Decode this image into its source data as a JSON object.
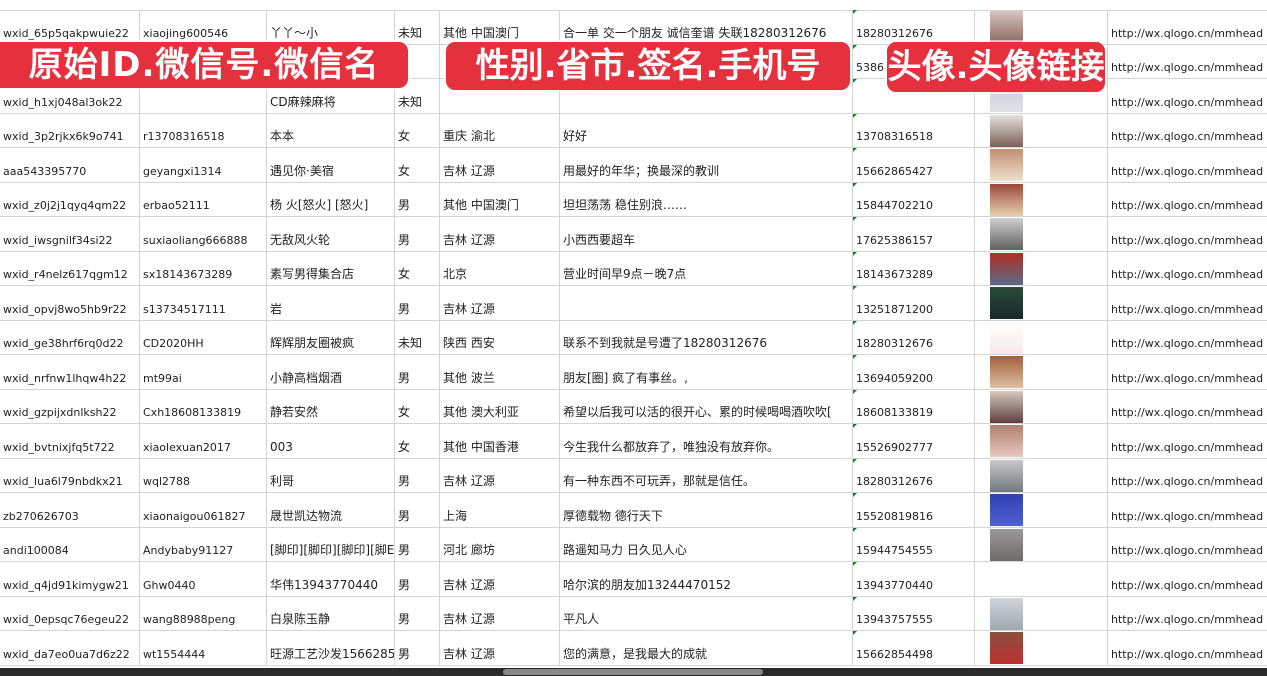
{
  "banners": {
    "left": "原始ID.微信号.微信名",
    "middle": "性别.省市.签名.手机号",
    "right": "头像.头像链接"
  },
  "colors": {
    "banner": "#e5313d",
    "grid": "#d4d4d4",
    "comment_marker": "#1f7a1f"
  },
  "rows": [
    {
      "id": "wxid_65p5qakpwuie22",
      "wechat": "xiaojing600546",
      "name": "丫丫～小",
      "gender": "未知",
      "region": "其他 中国澳门",
      "signature": "合一单 交一个朋友 诚信奎谱 失联18280312676",
      "phone": "18280312676",
      "url": "http://wx.qlogo.cn/mmhead"
    },
    {
      "id": "",
      "wechat": "",
      "name": "",
      "gender": "",
      "region": "",
      "signature": "",
      "phone": "5386",
      "url": "http://wx.qlogo.cn/mmhead"
    },
    {
      "id": "wxid_h1xj048al3ok22",
      "wechat": "",
      "name": "CD麻辣麻将",
      "gender": "未知",
      "region": "",
      "signature": "",
      "phone": "",
      "url": "http://wx.qlogo.cn/mmhead"
    },
    {
      "id": "wxid_3p2rjkx6k9o741",
      "wechat": "r13708316518",
      "name": "本本",
      "gender": "女",
      "region": "重庆 渝北",
      "signature": "好好",
      "phone": "13708316518",
      "url": "http://wx.qlogo.cn/mmhead"
    },
    {
      "id": "aaa543395770",
      "wechat": "geyangxi1314",
      "name": "遇见你·美宿",
      "gender": "女",
      "region": "吉林 辽源",
      "signature": "用最好的年华；换最深的教训",
      "phone": "15662865427",
      "url": "http://wx.qlogo.cn/mmhead"
    },
    {
      "id": "wxid_z0j2j1qyq4qm22",
      "wechat": "erbao52111",
      "name": "杨 火[怒火] [怒火]",
      "gender": "男",
      "region": "其他 中国澳门",
      "signature": "坦坦荡荡 稳住别浪……",
      "phone": "15844702210",
      "url": "http://wx.qlogo.cn/mmhead"
    },
    {
      "id": "wxid_iwsgnilf34si22",
      "wechat": "suxiaoliang666888",
      "name": "无敌风火轮",
      "gender": "男",
      "region": "吉林 辽源",
      "signature": "小西西要超车",
      "phone": "17625386157",
      "url": "http://wx.qlogo.cn/mmhead"
    },
    {
      "id": "wxid_r4nelz617qgm12",
      "wechat": "sx18143673289",
      "name": "素写男得集合店",
      "gender": "女",
      "region": "北京",
      "signature": "营业时间早9点－晚7点",
      "phone": "18143673289",
      "url": "http://wx.qlogo.cn/mmhead"
    },
    {
      "id": "wxid_opvj8wo5hb9r22",
      "wechat": "s13734517111",
      "name": "岩",
      "gender": "男",
      "region": "吉林 辽源",
      "signature": "",
      "phone": "13251871200",
      "url": "http://wx.qlogo.cn/mmhead"
    },
    {
      "id": "wxid_ge38hrf6rq0d22",
      "wechat": "CD2020HH",
      "name": "辉辉朋友圈被疯",
      "gender": "未知",
      "region": "陕西 西安",
      "signature": "联系不到我就是号遭了18280312676",
      "phone": "18280312676",
      "url": "http://wx.qlogo.cn/mmhead"
    },
    {
      "id": "wxid_nrfnw1lhqw4h22",
      "wechat": "mt99ai",
      "name": "小静高档烟酒",
      "gender": "男",
      "region": "其他 波兰",
      "signature": "朋友[圈] 疯了有事丝。,",
      "phone": "13694059200",
      "url": "http://wx.qlogo.cn/mmhead"
    },
    {
      "id": "wxid_gzpijxdnlksh22",
      "wechat": "Cxh18608133819",
      "name": "静若安然",
      "gender": "女",
      "region": "其他 澳大利亚",
      "signature": "希望以后我可以活的很开心、累的时候喝喝酒吹吹[",
      "phone": "18608133819",
      "url": "http://wx.qlogo.cn/mmhead"
    },
    {
      "id": "wxid_bvtnixjfq5t722",
      "wechat": "xiaolexuan2017",
      "name": "003",
      "gender": "女",
      "region": "其他 中国香港",
      "signature": "今生我什么都放弃了，唯独没有放弃你。",
      "phone": "15526902777",
      "url": "http://wx.qlogo.cn/mmhead"
    },
    {
      "id": "wxid_lua6l79nbdkx21",
      "wechat": "wql2788",
      "name": "利哥",
      "gender": "男",
      "region": "吉林 辽源",
      "signature": "有一种东西不可玩弄，那就是信任。",
      "phone": "18280312676",
      "url": "http://wx.qlogo.cn/mmhead"
    },
    {
      "id": "zb270626703",
      "wechat": "xiaonaigou061827",
      "name": "晟世凯达物流",
      "gender": "男",
      "region": "上海",
      "signature": "厚德载物 德行天下",
      "phone": "15520819816",
      "url": "http://wx.qlogo.cn/mmhead"
    },
    {
      "id": "andi100084",
      "wechat": "Andybaby91127",
      "name": "[脚印][脚印][脚印][脚E",
      "gender": "男",
      "region": "河北 廊坊",
      "signature": "路遥知马力 日久见人心",
      "phone": "15944754555",
      "url": "http://wx.qlogo.cn/mmhead"
    },
    {
      "id": "wxid_q4jd91kimygw21",
      "wechat": "Ghw0440",
      "name": "华伟13943770440",
      "gender": "男",
      "region": "吉林 辽源",
      "signature": "哈尔滨的朋友加13244470152",
      "phone": "13943770440",
      "url": "http://wx.qlogo.cn/mmhead"
    },
    {
      "id": "wxid_0epsqc76egeu22",
      "wechat": "wang88988peng",
      "name": "白泉陈玉静",
      "gender": "男",
      "region": "吉林 辽源",
      "signature": "平凡人",
      "phone": "13943757555",
      "url": "http://wx.qlogo.cn/mmhead"
    },
    {
      "id": "wxid_da7eo0ua7d6z22",
      "wechat": "wt1554444",
      "name": "旺源工艺沙发15662854",
      "gender": "男",
      "region": "吉林 辽源",
      "signature": "您的满意，是我最大的成就",
      "phone": "15662854498",
      "url": "http://wx.qlogo.cn/mmhead"
    }
  ]
}
